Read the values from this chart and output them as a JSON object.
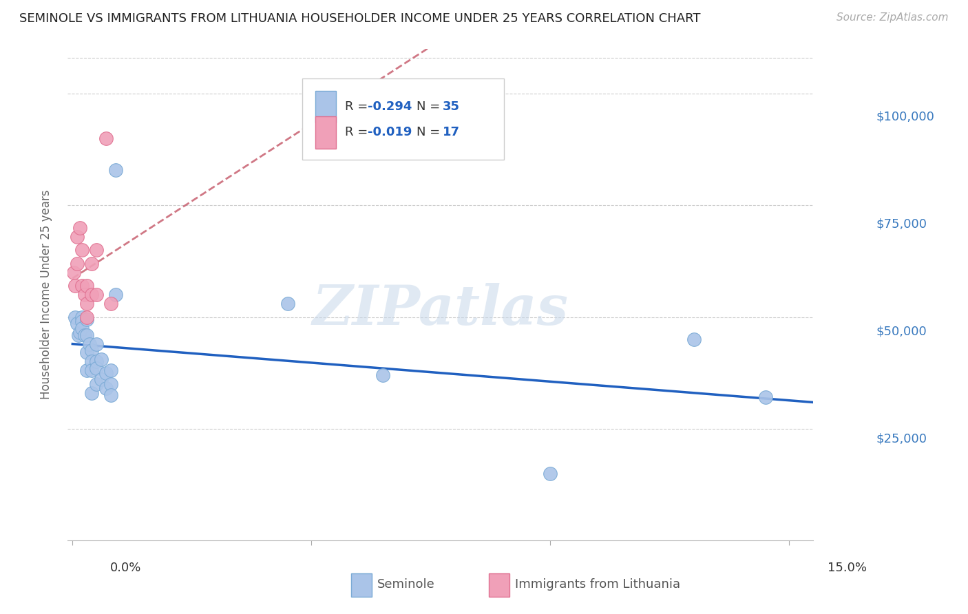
{
  "title": "SEMINOLE VS IMMIGRANTS FROM LITHUANIA HOUSEHOLDER INCOME UNDER 25 YEARS CORRELATION CHART",
  "source": "Source: ZipAtlas.com",
  "ylabel": "Householder Income Under 25 years",
  "ytick_labels": [
    "$25,000",
    "$50,000",
    "$75,000",
    "$100,000"
  ],
  "ytick_values": [
    25000,
    50000,
    75000,
    100000
  ],
  "ylim": [
    0,
    110000
  ],
  "xlim": [
    -0.001,
    0.155
  ],
  "blue_color": "#aac4e8",
  "pink_color": "#f0a0b8",
  "blue_line_color": "#2060c0",
  "pink_line_color": "#c86070",
  "watermark": "ZIPatlas",
  "blue_N": 35,
  "pink_N": 17,
  "blue_R": -0.294,
  "pink_R": -0.019,
  "seminole_x": [
    0.0005,
    0.001,
    0.0012,
    0.0015,
    0.002,
    0.002,
    0.002,
    0.0025,
    0.003,
    0.003,
    0.003,
    0.003,
    0.0035,
    0.004,
    0.004,
    0.004,
    0.004,
    0.005,
    0.005,
    0.005,
    0.005,
    0.006,
    0.006,
    0.007,
    0.007,
    0.008,
    0.008,
    0.008,
    0.009,
    0.009,
    0.045,
    0.065,
    0.1,
    0.13,
    0.145
  ],
  "seminole_y": [
    50000,
    48500,
    46000,
    46500,
    50000,
    49000,
    47500,
    46000,
    49500,
    46000,
    42000,
    38000,
    44000,
    42500,
    40000,
    38000,
    33000,
    44000,
    40000,
    38500,
    35000,
    40500,
    36000,
    37500,
    34000,
    38000,
    35000,
    32500,
    83000,
    55000,
    53000,
    37000,
    15000,
    45000,
    32000
  ],
  "lithuania_x": [
    0.0002,
    0.0005,
    0.001,
    0.001,
    0.0015,
    0.002,
    0.002,
    0.0025,
    0.003,
    0.003,
    0.003,
    0.004,
    0.004,
    0.005,
    0.005,
    0.007,
    0.008
  ],
  "lithuania_y": [
    60000,
    57000,
    68000,
    62000,
    70000,
    65000,
    57000,
    55000,
    57000,
    53000,
    50000,
    62000,
    55000,
    65000,
    55000,
    90000,
    53000
  ]
}
